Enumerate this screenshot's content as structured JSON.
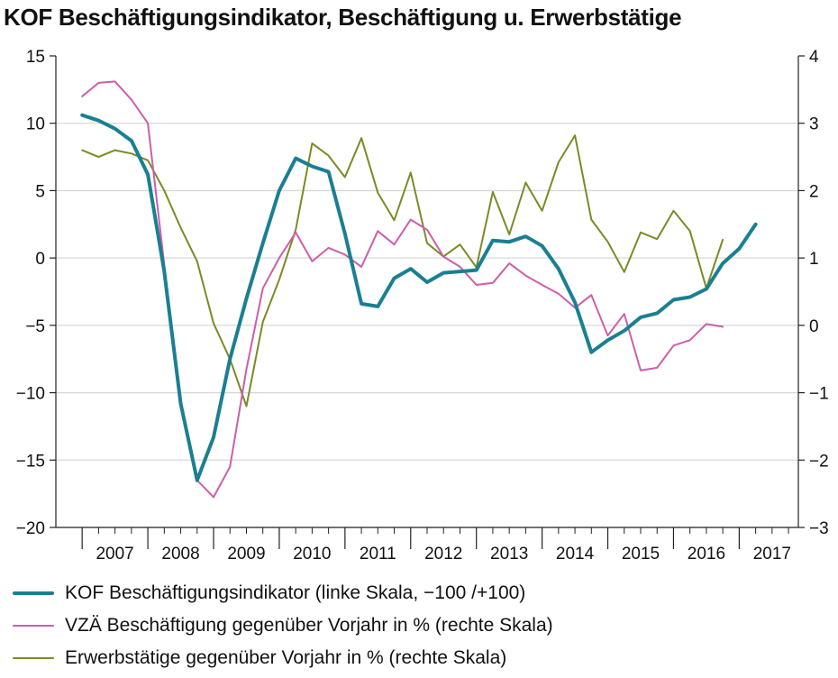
{
  "chart_data": {
    "type": "line",
    "title": "KOF Beschäftigungsindikator, Beschäftigung u. Erwerbstätige",
    "x_labels": [
      "2007",
      "2008",
      "2009",
      "2010",
      "2011",
      "2012",
      "2013",
      "2014",
      "2015",
      "2016",
      "2017"
    ],
    "y_left": {
      "range": [
        -20,
        15
      ],
      "ticks": [
        "15",
        "10",
        "5",
        "0",
        "−5",
        "−10",
        "−15",
        "−20"
      ]
    },
    "y_right": {
      "range": [
        -3,
        4
      ],
      "ticks": [
        "4",
        "3",
        "2",
        "1",
        "0",
        "−1",
        "−2",
        "−3"
      ]
    },
    "grid": true,
    "legend_position": "bottom",
    "series": [
      {
        "name": "KOF Beschäftigungsindikator (linke Skala, −100 /+100)",
        "axis": "left",
        "color": "#1a7f92",
        "width": 4,
        "start": 2007.0,
        "values": [
          10.6,
          10.2,
          9.6,
          8.7,
          6.2,
          -1.0,
          -10.8,
          -16.5,
          -13.3,
          -7.5,
          -3.0,
          1.1,
          5.0,
          7.4,
          6.8,
          6.4,
          1.8,
          -3.4,
          -3.6,
          -1.5,
          -0.8,
          -1.8,
          -1.1,
          -1.0,
          -0.9,
          1.3,
          1.2,
          1.6,
          0.9,
          -0.8,
          -3.3,
          -7.0,
          -6.1,
          -5.4,
          -4.4,
          -4.1,
          -3.1,
          -2.9,
          -2.3,
          -0.4,
          0.7,
          2.5
        ]
      },
      {
        "name": "VZÄ Beschäftigung gegenüber Vorjahr in %  (rechte Skala)",
        "axis": "right",
        "color": "#cc5fa8",
        "width": 2,
        "start": 2007.0,
        "values": [
          3.4,
          3.6,
          3.62,
          3.35,
          3.0,
          0.9,
          -1.2,
          -2.3,
          -2.55,
          -2.1,
          -0.65,
          0.55,
          1.0,
          1.38,
          0.95,
          1.15,
          1.05,
          0.87,
          1.4,
          1.2,
          1.57,
          1.42,
          1.02,
          0.87,
          0.6,
          0.63,
          0.92,
          0.74,
          0.6,
          0.47,
          0.26,
          0.45,
          -0.15,
          0.17,
          -0.67,
          -0.63,
          -0.3,
          -0.22,
          0.02,
          -0.02
        ]
      },
      {
        "name": "Erwerbstätige gegenüber Vorjahr in % (rechte Skala)",
        "axis": "right",
        "color": "#7c8a25",
        "width": 2,
        "start": 2007.0,
        "values": [
          2.6,
          2.5,
          2.6,
          2.55,
          2.45,
          2.0,
          1.45,
          0.95,
          0.03,
          -0.5,
          -1.2,
          0.05,
          0.68,
          1.42,
          2.7,
          2.52,
          2.2,
          2.78,
          1.97,
          1.56,
          2.27,
          1.22,
          1.02,
          1.2,
          0.86,
          1.98,
          1.35,
          2.12,
          1.7,
          2.42,
          2.82,
          1.57,
          1.24,
          0.79,
          1.38,
          1.28,
          1.7,
          1.4,
          0.55,
          1.27
        ]
      }
    ]
  }
}
